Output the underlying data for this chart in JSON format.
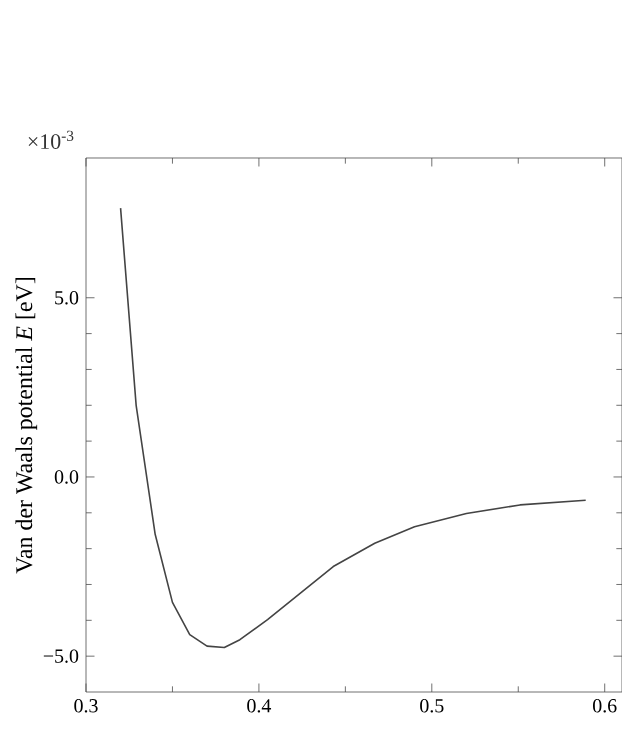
{
  "chart_data": {
    "type": "line",
    "ylabel": "Van der Waals potential  *E*  [eV]",
    "annotations": [
      "×10$^{-3}$"
    ],
    "x": [
      0.32,
      0.329,
      0.34,
      0.35,
      0.36,
      0.37,
      0.38,
      0.389,
      0.405,
      0.424,
      0.443,
      0.467,
      0.49,
      0.52,
      0.551,
      0.589
    ],
    "series": [
      {
        "color": "#444444",
        "values": [
          7.5,
          2.0,
          -1.6,
          -3.5,
          -4.4,
          -4.72,
          -4.76,
          -4.54,
          -3.98,
          -3.24,
          -2.5,
          -1.85,
          -1.39,
          -1.02,
          -0.78,
          -0.65
        ]
      }
    ],
    "xlim": [
      0.3,
      0.61
    ],
    "ylim": [
      -6,
      8.9
    ],
    "xticks": [
      {
        "value": 0.3,
        "label": "0.3"
      },
      {
        "value": 0.4,
        "label": "0.4"
      },
      {
        "value": 0.5,
        "label": "0.5"
      },
      {
        "value": 0.6,
        "label": "0.6"
      }
    ],
    "yticks": [
      {
        "value": -5,
        "label": "−5.0"
      },
      {
        "value": 0,
        "label": "0.0"
      },
      {
        "value": 5,
        "label": "5.0"
      }
    ],
    "marker": "none",
    "line_style": "solid"
  }
}
